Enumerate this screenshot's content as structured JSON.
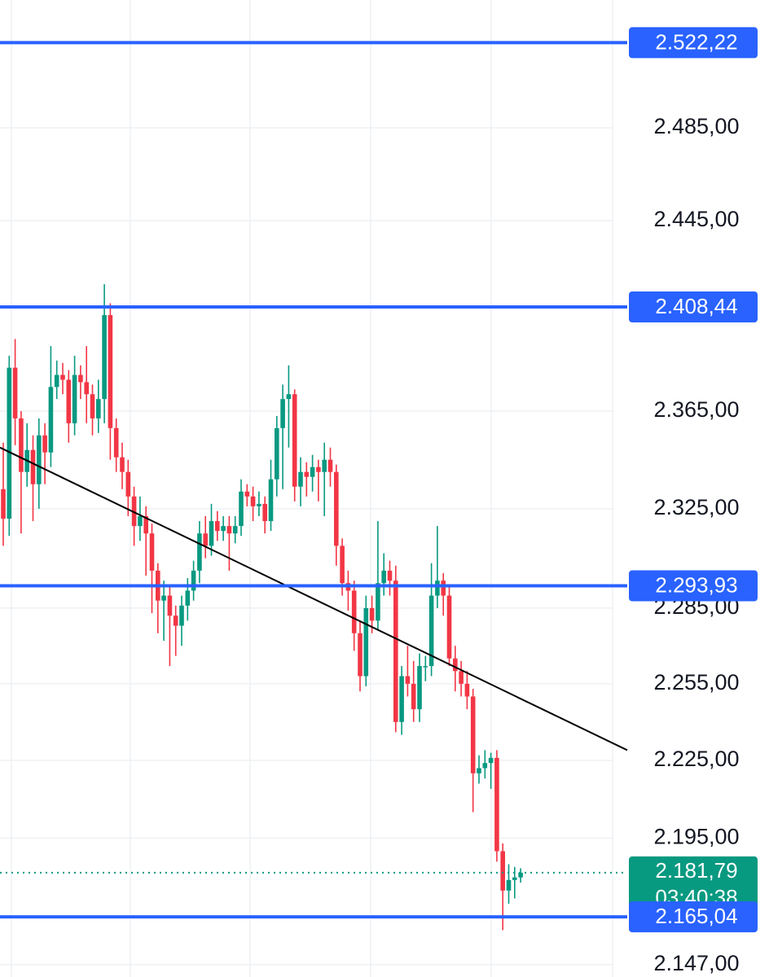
{
  "chart_data": {
    "type": "candlestick",
    "log_scale": true,
    "ylim": [
      2142.4,
      2541.1
    ],
    "yticks": [
      {
        "value": 2485,
        "label": "2.485,00"
      },
      {
        "value": 2445,
        "label": "2.445,00"
      },
      {
        "value": 2365,
        "label": "2.365,00"
      },
      {
        "value": 2325,
        "label": "2.325,00"
      },
      {
        "value": 2285,
        "label": "2.285,00"
      },
      {
        "value": 2255,
        "label": "2.255,00"
      },
      {
        "value": 2225,
        "label": "2.225,00"
      },
      {
        "value": 2195,
        "label": "2.195,00"
      },
      {
        "value": 2147,
        "label": "2.147,00"
      }
    ],
    "grid": true,
    "up_color": "#089981",
    "down_color": "#f23645",
    "open": [
      2333,
      2321,
      2383,
      2362,
      2340,
      2349,
      2335,
      2355,
      2348,
      2375,
      2380,
      2378,
      2360,
      2380,
      2377,
      2372,
      2362,
      2370,
      2405,
      2358,
      2346,
      2340,
      2330,
      2318,
      2322,
      2315,
      2300,
      2288,
      2290,
      2282,
      2278,
      2286,
      2292,
      2300,
      2315,
      2310,
      2320,
      2316,
      2318,
      2315,
      2318,
      2332,
      2330,
      2326,
      2327,
      2320,
      2337,
      2358,
      2370,
      2372,
      2334,
      2340,
      2338,
      2342,
      2340,
      2345,
      2340,
      2310,
      2295,
      2292,
      2275,
      2258,
      2285,
      2280,
      2295,
      2300,
      2296,
      2240,
      2258,
      2255,
      2245,
      2262,
      2262,
      2290,
      2296,
      2290,
      2265,
      2260,
      2255,
      2250,
      2220,
      2222,
      2224,
      2226,
      2190,
      2175,
      2179,
      2180
    ],
    "high": [
      2352,
      2388,
      2395,
      2365,
      2360,
      2355,
      2362,
      2360,
      2392,
      2386,
      2385,
      2382,
      2388,
      2384,
      2392,
      2376,
      2378,
      2418,
      2410,
      2362,
      2352,
      2345,
      2334,
      2330,
      2326,
      2319,
      2303,
      2296,
      2294,
      2286,
      2290,
      2297,
      2304,
      2320,
      2322,
      2327,
      2324,
      2322,
      2322,
      2322,
      2337,
      2335,
      2334,
      2332,
      2330,
      2345,
      2363,
      2376,
      2384,
      2374,
      2346,
      2344,
      2347,
      2345,
      2352,
      2350,
      2343,
      2313,
      2300,
      2296,
      2280,
      2290,
      2290,
      2320,
      2307,
      2304,
      2302,
      2262,
      2270,
      2264,
      2267,
      2266,
      2303,
      2318,
      2299,
      2294,
      2270,
      2264,
      2260,
      2253,
      2227,
      2229,
      2228,
      2229,
      2193,
      2185,
      2184,
      2183.5
    ],
    "low": [
      2310,
      2314,
      2351,
      2315,
      2334,
      2320,
      2325,
      2335,
      2342,
      2370,
      2372,
      2352,
      2355,
      2370,
      2360,
      2355,
      2356,
      2360,
      2345,
      2340,
      2333,
      2322,
      2310,
      2312,
      2298,
      2283,
      2275,
      2272,
      2262,
      2266,
      2270,
      2280,
      2288,
      2295,
      2305,
      2306,
      2312,
      2312,
      2300,
      2311,
      2314,
      2326,
      2320,
      2322,
      2315,
      2316,
      2330,
      2333,
      2350,
      2328,
      2326,
      2330,
      2332,
      2328,
      2322,
      2334,
      2302,
      2290,
      2284,
      2268,
      2252,
      2254,
      2275,
      2276,
      2290,
      2290,
      2236,
      2235,
      2250,
      2240,
      2240,
      2256,
      2258,
      2285,
      2282,
      2262,
      2252,
      2250,
      2245,
      2205,
      2216,
      2218,
      2214,
      2186,
      2160,
      2170,
      2172,
      2178
    ],
    "close": [
      2321,
      2383,
      2362,
      2340,
      2349,
      2335,
      2355,
      2348,
      2375,
      2380,
      2378,
      2360,
      2380,
      2377,
      2372,
      2362,
      2370,
      2405,
      2358,
      2346,
      2340,
      2330,
      2318,
      2322,
      2315,
      2300,
      2288,
      2290,
      2282,
      2278,
      2286,
      2292,
      2300,
      2315,
      2310,
      2320,
      2316,
      2318,
      2315,
      2318,
      2332,
      2330,
      2326,
      2327,
      2320,
      2337,
      2358,
      2370,
      2372,
      2334,
      2340,
      2338,
      2342,
      2340,
      2345,
      2340,
      2310,
      2295,
      2292,
      2275,
      2258,
      2285,
      2280,
      2295,
      2300,
      2296,
      2240,
      2258,
      2255,
      2245,
      2262,
      2262,
      2290,
      2296,
      2290,
      2265,
      2260,
      2255,
      2250,
      2220,
      2222,
      2224,
      2226,
      2190,
      2175,
      2179,
      2180,
      2181.79
    ],
    "levels": {
      "color": "#2962ff",
      "values": [
        {
          "value": 2522.22,
          "label": "2.522,22"
        },
        {
          "value": 2408.44,
          "label": "2.408,44"
        },
        {
          "value": 2293.93,
          "label": "2.293,93"
        },
        {
          "value": 2165.04,
          "label": "2.165,04"
        }
      ]
    },
    "trend_line": {
      "color": "#000000",
      "values": [
        2350,
        2229
      ]
    },
    "last_price": {
      "value": 2181.79,
      "label": "2.181,79"
    },
    "countdown": "03:40:38"
  }
}
